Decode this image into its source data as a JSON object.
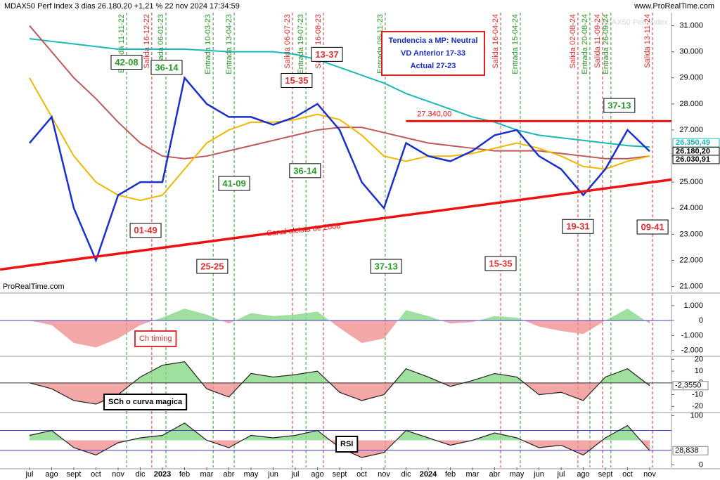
{
  "chart_data": [
    {
      "type": "line",
      "title": "MDAX50 Perf Index 3 dias 26.180,20 +1,21 % 22 nov 2024 17:34:59",
      "watermark": "MDAX50 Perf Index",
      "source": "ProRealTime.com",
      "source_link": "www.ProRealTime.com",
      "categories": [
        "jul",
        "ago",
        "sept",
        "oct",
        "nov",
        "dic",
        "2023",
        "feb",
        "mar",
        "abr",
        "may",
        "jun",
        "jul",
        "ago",
        "sept",
        "oct",
        "nov",
        "dic",
        "2024",
        "feb",
        "mar",
        "abr",
        "may",
        "jun",
        "jul",
        "ago",
        "sept",
        "oct",
        "nov"
      ],
      "series": [
        {
          "color": "#1bb8b8",
          "values": [
            30500,
            30400,
            30300,
            30200,
            30100,
            30100,
            30100,
            30100,
            30050,
            30000,
            30000,
            30000,
            29900,
            29700,
            29400,
            29100,
            28800,
            28400,
            28100,
            27800,
            27500,
            27300,
            27000,
            26800,
            26700,
            26600,
            26500,
            26400,
            26350
          ]
        },
        {
          "color": "#c05a5a",
          "values": [
            31000,
            30000,
            29000,
            28200,
            27300,
            26500,
            26000,
            25900,
            26000,
            26200,
            26400,
            26600,
            26800,
            27000,
            27100,
            27100,
            26900,
            26700,
            26500,
            26400,
            26300,
            26200,
            26200,
            26200,
            26100,
            26000,
            25900,
            25900,
            26000
          ]
        },
        {
          "color": "#f2b800",
          "values": [
            29000,
            27500,
            26000,
            25000,
            24500,
            24300,
            24500,
            25500,
            26500,
            27000,
            27300,
            27300,
            27400,
            27600,
            27400,
            26800,
            26000,
            25800,
            26000,
            26000,
            26100,
            26300,
            26500,
            26300,
            26000,
            25600,
            25500,
            25800,
            26000
          ]
        },
        {
          "color": "#1a2fd0",
          "values": [
            26500,
            27500,
            24000,
            22000,
            24500,
            25000,
            25000,
            29000,
            28000,
            27500,
            27500,
            27200,
            27500,
            28000,
            27000,
            25000,
            24000,
            26500,
            26000,
            25800,
            26200,
            26800,
            27000,
            26000,
            25500,
            24500,
            25500,
            27000,
            26180
          ]
        }
      ],
      "ylim": [
        20800,
        31500
      ],
      "yticks": [
        {
          "value": 21000,
          "label": "21.000"
        },
        {
          "value": 22000,
          "label": "22.000"
        },
        {
          "value": 23000,
          "label": "23.000"
        },
        {
          "value": 24000,
          "label": "24.000"
        },
        {
          "value": 25000,
          "label": "25.000"
        },
        {
          "value": 26000,
          "label": "26.000"
        },
        {
          "value": 27000,
          "label": "27.000"
        },
        {
          "value": 28000,
          "label": "28.000"
        },
        {
          "value": 29000,
          "label": "29.000"
        },
        {
          "value": 30000,
          "label": "30.000"
        },
        {
          "value": 31000,
          "label": "31.000"
        }
      ],
      "resistance": {
        "value": 27340,
        "label": "27.340,00",
        "color": "#ee1111"
      },
      "trendline": {
        "label": "Canal alcista de 2008",
        "x": [
          -1.33,
          29.0
        ],
        "values": [
          21650,
          25100
        ],
        "color": "#ee1111"
      },
      "markers": [
        {
          "value": 26350.49,
          "label": "26.350,49",
          "color": "#1bb8b8"
        },
        {
          "value": 26180.2,
          "label": "26.180,20",
          "color": "#000000"
        },
        {
          "value": 26030.91,
          "label": "26.030,91",
          "color": "#000000"
        }
      ],
      "signals": [
        {
          "label": "Entrada 11-11-22",
          "x": 4.38,
          "color": "#2a9a2a"
        },
        {
          "label": "Salida 16-12-22",
          "x": 5.52,
          "color": "#e03030"
        },
        {
          "label": "Entrada 06-01-23",
          "x": 6.16,
          "color": "#2a9a2a"
        },
        {
          "label": "Entrada 10-03-23",
          "x": 8.29,
          "color": "#2a9a2a"
        },
        {
          "label": "Entrada 13-04-23",
          "x": 9.24,
          "color": "#2a9a2a"
        },
        {
          "label": "Salida 06-07-23",
          "x": 11.87,
          "color": "#e03030"
        },
        {
          "label": "Entrada 19-07-23",
          "x": 12.48,
          "color": "#2a9a2a"
        },
        {
          "label": "Salida 16-08-23",
          "x": 13.27,
          "color": "#e03030"
        },
        {
          "label": "Entrada 08-11-23",
          "x": 16.06,
          "color": "#2a9a2a"
        },
        {
          "label": "Salida 16-04-24",
          "x": 21.27,
          "color": "#e03030"
        },
        {
          "label": "Entrada 15-04-24",
          "x": 22.16,
          "color": "#2a9a2a"
        },
        {
          "label": "Salida 02-08-24",
          "x": 24.76,
          "color": "#e03030"
        },
        {
          "label": "Entrada 20-08-24",
          "x": 25.3,
          "color": "#2a9a2a"
        },
        {
          "label": "Salida 11-09-24",
          "x": 25.87,
          "color": "#e03030"
        },
        {
          "label": "Entrada 26-09-24",
          "x": 26.25,
          "color": "#2a9a2a"
        },
        {
          "label": "Salida 13-11-24",
          "x": 28.13,
          "color": "#e03030"
        }
      ],
      "boxes": [
        {
          "label": "42-08",
          "x": 4.38,
          "y": 29600,
          "color": "#2a9a2a"
        },
        {
          "label": "36-14",
          "x": 6.19,
          "y": 29400,
          "color": "#2a9a2a"
        },
        {
          "label": "01-49",
          "x": 5.24,
          "y": 23150,
          "color": "#e03030"
        },
        {
          "label": "25-25",
          "x": 8.25,
          "y": 21770,
          "color": "#e03030"
        },
        {
          "label": "41-09",
          "x": 9.24,
          "y": 24950,
          "color": "#2a9a2a"
        },
        {
          "label": "15-35",
          "x": 12.06,
          "y": 28900,
          "color": "#e03030"
        },
        {
          "label": "13-37",
          "x": 13.43,
          "y": 29900,
          "color": "#e03030"
        },
        {
          "label": "36-14",
          "x": 12.44,
          "y": 25440,
          "color": "#2a9a2a"
        },
        {
          "label": "37-13",
          "x": 16.1,
          "y": 21770,
          "color": "#2a9a2a"
        },
        {
          "label": "15-35",
          "x": 21.27,
          "y": 21880,
          "color": "#e03030"
        },
        {
          "label": "19-31",
          "x": 24.76,
          "y": 23300,
          "color": "#e03030"
        },
        {
          "label": "09-41",
          "x": 28.13,
          "y": 23280,
          "color": "#e03030"
        },
        {
          "label": "37-13",
          "x": 26.63,
          "y": 27940,
          "color": "#2a9a2a"
        }
      ],
      "info": [
        "Tendencia a MP: Neutral",
        "VD Anterior 17-33",
        "Actual 27-23"
      ]
    },
    {
      "type": "area",
      "label": "Ch timing",
      "label_color": "#e03030",
      "values": [
        0,
        -300,
        -1500,
        -1800,
        -1200,
        -300,
        200,
        800,
        400,
        -200,
        500,
        300,
        400,
        600,
        -500,
        -1500,
        -1200,
        700,
        300,
        -200,
        -100,
        300,
        200,
        -400,
        -700,
        -900,
        0,
        800,
        -200
      ],
      "ylim": [
        -2300,
        1700
      ],
      "yticks": [
        {
          "value": 1000,
          "label": "1.000"
        },
        0,
        {
          "value": -1000,
          "label": "-1.000"
        },
        {
          "value": -2000,
          "label": "-2.000"
        }
      ]
    },
    {
      "type": "area",
      "label": "SCh o curva magica",
      "label_color": "#000000",
      "values": [
        0,
        -5,
        -15,
        -18,
        -10,
        5,
        15,
        18,
        -5,
        -12,
        8,
        5,
        7,
        10,
        -8,
        -15,
        -10,
        12,
        5,
        -3,
        2,
        8,
        5,
        -10,
        -8,
        -15,
        5,
        12,
        -2.355
      ],
      "value_labels": {
        "28": "-2,3550"
      },
      "ylim": [
        -24,
        22
      ],
      "yticks": [
        20,
        10,
        0,
        -10,
        -20
      ]
    },
    {
      "type": "area",
      "label": "RSI",
      "label_color": "#000000",
      "base": 50,
      "values": [
        60,
        70,
        35,
        20,
        45,
        55,
        60,
        85,
        50,
        35,
        60,
        55,
        60,
        70,
        35,
        15,
        25,
        70,
        55,
        40,
        50,
        65,
        55,
        35,
        40,
        20,
        55,
        80,
        28.838
      ],
      "value_labels": {
        "28": "28,838"
      },
      "levels": [
        70,
        30
      ],
      "ylim": [
        -5,
        105
      ],
      "yticks": [
        100,
        0
      ]
    }
  ]
}
